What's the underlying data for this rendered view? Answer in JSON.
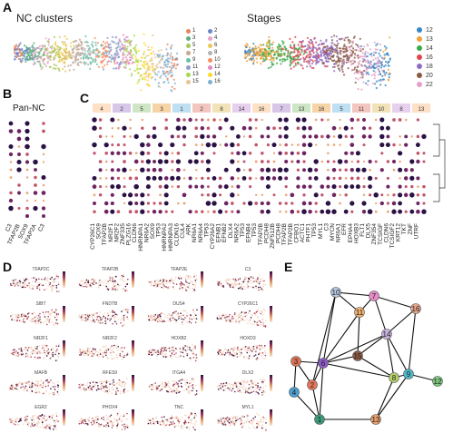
{
  "panels": {
    "a": {
      "label": "A",
      "titles": [
        "NC clusters",
        "Stages"
      ]
    },
    "b": {
      "label": "B",
      "title": "Pan-NC",
      "genes": [
        "C3",
        "TFAP2B",
        "SOX9",
        "TFAP2A",
        "C3"
      ]
    },
    "c": {
      "label": "C",
      "groups": [
        "4",
        "2",
        "5",
        "3",
        "1",
        "2",
        "8",
        "14",
        "16",
        "7",
        "13",
        "16",
        "5",
        "11",
        "10",
        "8",
        "13"
      ],
      "genes": [
        "CYP26C1",
        "SOX9",
        "TFAP2B",
        "NR2F1",
        "NR2F2",
        "ZNF335",
        "PLZG16",
        "CLDN6",
        "HNRNPA1",
        "NR6A2",
        "SOX9",
        "TP53",
        "HNRNPA2",
        "HNRNPA3",
        "CLDN16",
        "CUL4",
        "ARK",
        "NR6A1",
        "NR6A4",
        "TP53",
        "CYP26A2",
        "EFNB1",
        "EFNB2",
        "DLX4",
        "NR6A2",
        "TP53",
        "EFNB4",
        "TP53",
        "TFAP2B",
        "PCDH8",
        "ZNF512B",
        "PCDH8",
        "TFAP2B",
        "TFAP2B",
        "CFBO1",
        "ACTC1",
        "PHTF1",
        "TP53",
        "MYL1",
        "C3",
        "MYCN",
        "NR6A1",
        "EFR",
        "EPHA4",
        "HOXB3",
        "FLT1",
        "DLX5",
        "ZNF354",
        "TCSIGF",
        "CLDN6",
        "TCSIGF2",
        "KRT12",
        "TKT",
        "ZNF",
        "UTRF"
      ]
    },
    "d": {
      "label": "D",
      "features": [
        "TFAP2C",
        "TFAP2B",
        "TFAP2E",
        "C3",
        "SIBT",
        "FNDTB",
        "DUS4",
        "CYP26C1",
        "NR2F1",
        "NR2F2",
        "HOXB2",
        "HOXD3",
        "MAFB",
        "RFES9",
        "ITGA4",
        "DLX2",
        "EGR2",
        "PHOX4",
        "TNC",
        "MYL1"
      ]
    },
    "e": {
      "label": "E"
    }
  },
  "legend_clusters": [
    "1",
    "2",
    "3",
    "4",
    "5",
    "6",
    "7",
    "8",
    "9",
    "10",
    "11",
    "12",
    "13",
    "14",
    "15",
    "16"
  ],
  "cluster_colors": [
    "#e8845c",
    "#6a87c9",
    "#5fb07f",
    "#e8a3cc",
    "#a3c75a",
    "#e9c955",
    "#c9a78f",
    "#b3b3b3",
    "#66c2a5",
    "#fc8d62",
    "#8da0cb",
    "#e78ac3",
    "#a6d854",
    "#ffd92f",
    "#e5c494",
    "#80b1d3"
  ],
  "stages": [
    "12",
    "13",
    "14",
    "16",
    "18",
    "20",
    "22"
  ],
  "stage_colors": [
    "#3a87c4",
    "#f0a13a",
    "#3aaa4a",
    "#e0464c",
    "#8f6cc2",
    "#8a5a44",
    "#e6a0c8"
  ],
  "network_nodes": [
    "10",
    "7",
    "16",
    "11",
    "14",
    "2",
    "6",
    "15",
    "3",
    "4",
    "9",
    "12",
    "8",
    "1",
    "13"
  ],
  "network_colors": {
    "10": "#b5c7e0",
    "7": "#e58bc8",
    "16": "#e8a68c",
    "11": "#f2b16f",
    "14": "#c9b1e0",
    "2": "#e8765a",
    "6": "#8e59c9",
    "15": "#8a5a44",
    "3": "#e07355",
    "4": "#4aa0d0",
    "9": "#4db8c8",
    "12": "#7fc97f",
    "8": "#b6d06a",
    "1": "#3c9a7a",
    "13": "#e8a06c"
  }
}
